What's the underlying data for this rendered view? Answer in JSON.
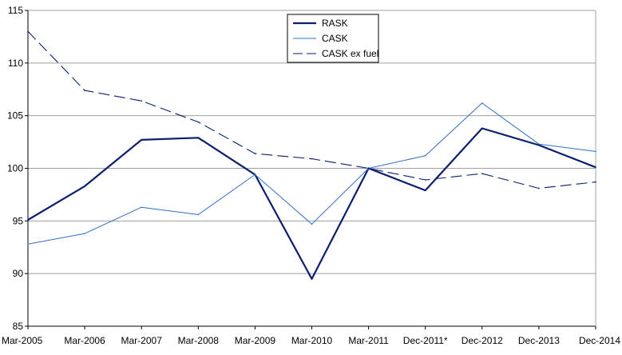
{
  "chart_data": {
    "type": "line",
    "title": "",
    "xlabel": "",
    "ylabel": "",
    "categories": [
      "Mar-2005",
      "Mar-2006",
      "Mar-2007",
      "Mar-2008",
      "Mar-2009",
      "Mar-2010",
      "Mar-2011",
      "Dec-2011*",
      "Dec-2012",
      "Dec-2013",
      "Dec-2014"
    ],
    "ylim": [
      85,
      115
    ],
    "yticks": [
      "85",
      "90",
      "95",
      "100",
      "105",
      "110",
      "115"
    ],
    "grid": "horizontal",
    "legend_position": "top-center",
    "series": [
      {
        "name": "RASK",
        "color": "#0b1f6e",
        "style": "solid-thick",
        "values": [
          95.1,
          98.3,
          102.7,
          102.9,
          99.4,
          89.5,
          100.0,
          97.9,
          103.8,
          102.2,
          100.1
        ]
      },
      {
        "name": "CASK",
        "color": "#2f6fc8",
        "style": "solid-thin",
        "values": [
          92.8,
          93.8,
          96.3,
          95.6,
          99.4,
          94.7,
          100.0,
          101.2,
          106.2,
          102.3,
          101.6
        ]
      },
      {
        "name": "CASK ex fuel",
        "color": "#0b1f6e",
        "style": "dashed",
        "values": [
          113.0,
          107.4,
          106.4,
          104.4,
          101.4,
          100.9,
          100.0,
          98.9,
          99.5,
          98.1,
          98.7
        ]
      }
    ]
  }
}
